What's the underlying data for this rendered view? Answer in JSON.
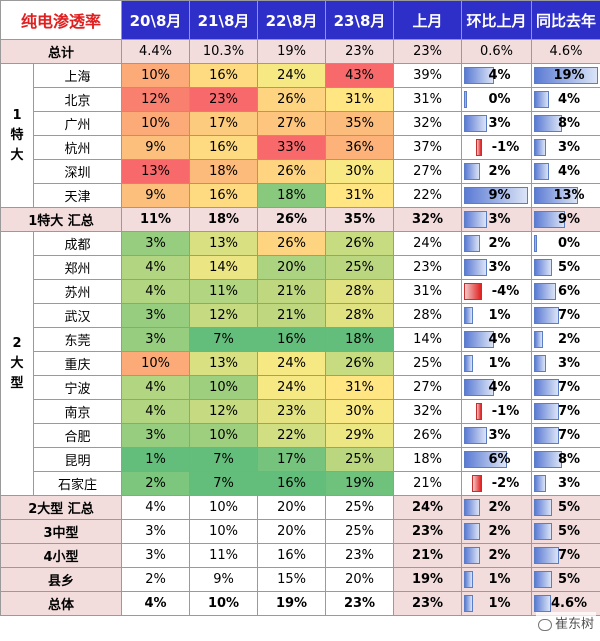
{
  "header": {
    "title": "纯电渗透率",
    "columns": [
      "20\\8月",
      "21\\8月",
      "22\\8月",
      "23\\8月",
      "上月",
      "环比上月",
      "同比去年"
    ]
  },
  "total_row": {
    "label": "总计",
    "values": [
      "4.4%",
      "10.3%",
      "19%",
      "23%",
      "23%",
      "0.6%",
      "4.6%"
    ]
  },
  "group1": {
    "label": "1\n特\n大",
    "cities": [
      {
        "name": "上海",
        "v": [
          "10%",
          "16%",
          "24%",
          "43%",
          "39%"
        ],
        "mom": "4%",
        "mom_n": 4,
        "yoy": "19%",
        "yoy_n": 19
      },
      {
        "name": "北京",
        "v": [
          "12%",
          "23%",
          "26%",
          "31%",
          "31%"
        ],
        "mom": "0%",
        "mom_n": 0,
        "yoy": "4%",
        "yoy_n": 4
      },
      {
        "name": "广州",
        "v": [
          "10%",
          "17%",
          "27%",
          "35%",
          "32%"
        ],
        "mom": "3%",
        "mom_n": 3,
        "yoy": "8%",
        "yoy_n": 8
      },
      {
        "name": "杭州",
        "v": [
          "9%",
          "16%",
          "33%",
          "36%",
          "37%"
        ],
        "mom": "-1%",
        "mom_n": -1,
        "yoy": "3%",
        "yoy_n": 3
      },
      {
        "name": "深圳",
        "v": [
          "13%",
          "18%",
          "26%",
          "30%",
          "27%"
        ],
        "mom": "2%",
        "mom_n": 2,
        "yoy": "4%",
        "yoy_n": 4
      },
      {
        "name": "天津",
        "v": [
          "9%",
          "16%",
          "18%",
          "31%",
          "22%"
        ],
        "mom": "9%",
        "mom_n": 9,
        "yoy": "13%",
        "yoy_n": 13
      }
    ],
    "summary": {
      "label": "1特大 汇总",
      "values": [
        "11%",
        "18%",
        "26%",
        "35%",
        "32%"
      ],
      "mom": "3%",
      "mom_n": 3,
      "yoy": "9%",
      "yoy_n": 9
    }
  },
  "group2": {
    "label": "2\n大\n型",
    "cities": [
      {
        "name": "成都",
        "v": [
          "3%",
          "13%",
          "26%",
          "26%",
          "24%"
        ],
        "mom": "2%",
        "mom_n": 2,
        "yoy": "0%",
        "yoy_n": 0
      },
      {
        "name": "郑州",
        "v": [
          "4%",
          "14%",
          "20%",
          "25%",
          "23%"
        ],
        "mom": "3%",
        "mom_n": 3,
        "yoy": "5%",
        "yoy_n": 5
      },
      {
        "name": "苏州",
        "v": [
          "4%",
          "11%",
          "21%",
          "28%",
          "31%"
        ],
        "mom": "-4%",
        "mom_n": -4,
        "yoy": "6%",
        "yoy_n": 6
      },
      {
        "name": "武汉",
        "v": [
          "3%",
          "12%",
          "21%",
          "28%",
          "28%"
        ],
        "mom": "1%",
        "mom_n": 1,
        "yoy": "7%",
        "yoy_n": 7
      },
      {
        "name": "东莞",
        "v": [
          "3%",
          "7%",
          "16%",
          "18%",
          "14%"
        ],
        "mom": "4%",
        "mom_n": 4,
        "yoy": "2%",
        "yoy_n": 2
      },
      {
        "name": "重庆",
        "v": [
          "10%",
          "13%",
          "24%",
          "26%",
          "25%"
        ],
        "mom": "1%",
        "mom_n": 1,
        "yoy": "3%",
        "yoy_n": 3
      },
      {
        "name": "宁波",
        "v": [
          "4%",
          "10%",
          "24%",
          "31%",
          "27%"
        ],
        "mom": "4%",
        "mom_n": 4,
        "yoy": "7%",
        "yoy_n": 7
      },
      {
        "name": "南京",
        "v": [
          "4%",
          "12%",
          "23%",
          "30%",
          "32%"
        ],
        "mom": "-1%",
        "mom_n": -1,
        "yoy": "7%",
        "yoy_n": 7
      },
      {
        "name": "合肥",
        "v": [
          "3%",
          "10%",
          "22%",
          "29%",
          "26%"
        ],
        "mom": "3%",
        "mom_n": 3,
        "yoy": "7%",
        "yoy_n": 7
      },
      {
        "name": "昆明",
        "v": [
          "1%",
          "7%",
          "17%",
          "25%",
          "18%"
        ],
        "mom": "6%",
        "mom_n": 6,
        "yoy": "8%",
        "yoy_n": 8
      },
      {
        "name": "石家庄",
        "v": [
          "2%",
          "7%",
          "16%",
          "19%",
          "21%"
        ],
        "mom": "-2%",
        "mom_n": -2,
        "yoy": "3%",
        "yoy_n": 3
      }
    ]
  },
  "bottom_rows": [
    {
      "label": "2大型 汇总",
      "values": [
        "4%",
        "10%",
        "20%",
        "25%",
        "24%"
      ],
      "mom": "2%",
      "mom_n": 2,
      "yoy": "5%",
      "yoy_n": 5
    },
    {
      "label": "3中型",
      "values": [
        "3%",
        "10%",
        "20%",
        "25%",
        "23%"
      ],
      "mom": "2%",
      "mom_n": 2,
      "yoy": "5%",
      "yoy_n": 5
    },
    {
      "label": "4小型",
      "values": [
        "3%",
        "11%",
        "16%",
        "23%",
        "21%"
      ],
      "mom": "2%",
      "mom_n": 2,
      "yoy": "7%",
      "yoy_n": 7
    },
    {
      "label": "县乡",
      "values": [
        "2%",
        "9%",
        "15%",
        "20%",
        "19%"
      ],
      "mom": "1%",
      "mom_n": 1,
      "yoy": "5%",
      "yoy_n": 5
    },
    {
      "label": "总体",
      "values": [
        "4%",
        "10%",
        "19%",
        "23%",
        "23%"
      ],
      "mom": "1%",
      "mom_n": 1,
      "yoy": "4.6%",
      "yoy_n": 4.6
    }
  ],
  "watermark": "崔东树",
  "colors": {
    "header_bg": "#2e2ec8",
    "title_red": "#e02020",
    "summary_pink": "#f2dcdc",
    "bar_blue": "#5b7bd4",
    "bar_red": "#e02020",
    "heat_low": "#63be7b",
    "heat_mid": "#ffeb84",
    "heat_high": "#f8696b"
  }
}
